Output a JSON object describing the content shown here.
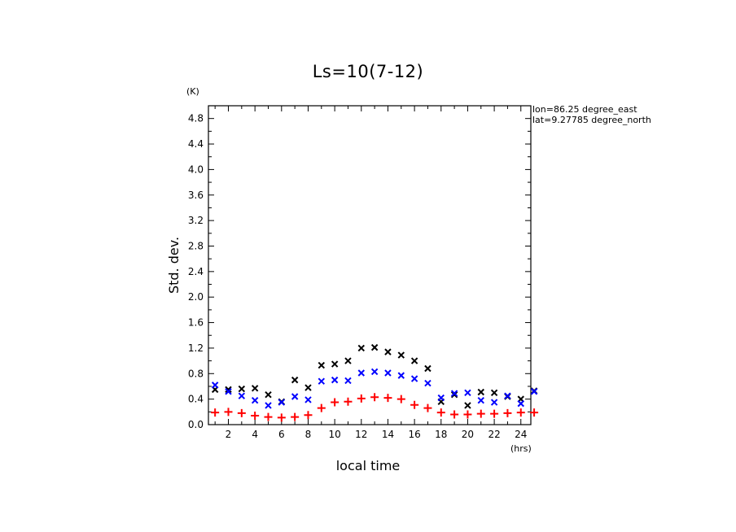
{
  "chart_data": {
    "type": "scatter",
    "title": "Ls=10(7-12)",
    "xlabel": "local time",
    "ylabel": "Std. dev.",
    "x_unit": "(hrs)",
    "y_unit": "(K)",
    "info_lines": [
      "lon=86.25 degree_east",
      "lat=9.27785 degree_north"
    ],
    "xlim": [
      0.5,
      24.75
    ],
    "ylim": [
      0.0,
      5.0
    ],
    "x_ticks": [
      2,
      4,
      6,
      8,
      10,
      12,
      14,
      16,
      18,
      20,
      22,
      24
    ],
    "y_ticks": [
      "0.0",
      "0.4",
      "0.8",
      "1.2",
      "1.6",
      "2.0",
      "2.4",
      "2.8",
      "3.2",
      "3.6",
      "4.0",
      "4.4",
      "4.8"
    ],
    "grid": false,
    "x": [
      1,
      2,
      3,
      4,
      5,
      6,
      7,
      8,
      9,
      10,
      11,
      12,
      13,
      14,
      15,
      16,
      17,
      18,
      19,
      20,
      21,
      22,
      23,
      24,
      25
    ],
    "series": [
      {
        "color": "#000000",
        "marker": "x",
        "values": [
          0.55,
          0.55,
          0.56,
          0.57,
          0.47,
          0.36,
          0.7,
          0.58,
          0.93,
          0.95,
          1.0,
          1.2,
          1.21,
          1.14,
          1.09,
          1.0,
          0.88,
          0.36,
          0.47,
          0.3,
          0.51,
          0.5,
          0.44,
          0.4,
          0.53
        ]
      },
      {
        "color": "#0000ff",
        "marker": "x",
        "values": [
          0.62,
          0.52,
          0.45,
          0.38,
          0.3,
          0.35,
          0.44,
          0.39,
          0.68,
          0.7,
          0.69,
          0.81,
          0.83,
          0.81,
          0.77,
          0.72,
          0.65,
          0.42,
          0.49,
          0.5,
          0.38,
          0.35,
          0.45,
          0.33,
          0.52
        ]
      },
      {
        "color": "#ff0000",
        "marker": "+",
        "values": [
          0.19,
          0.2,
          0.18,
          0.14,
          0.12,
          0.11,
          0.12,
          0.15,
          0.26,
          0.35,
          0.36,
          0.41,
          0.43,
          0.42,
          0.4,
          0.31,
          0.26,
          0.19,
          0.16,
          0.16,
          0.17,
          0.17,
          0.18,
          0.19,
          0.19
        ]
      }
    ]
  }
}
